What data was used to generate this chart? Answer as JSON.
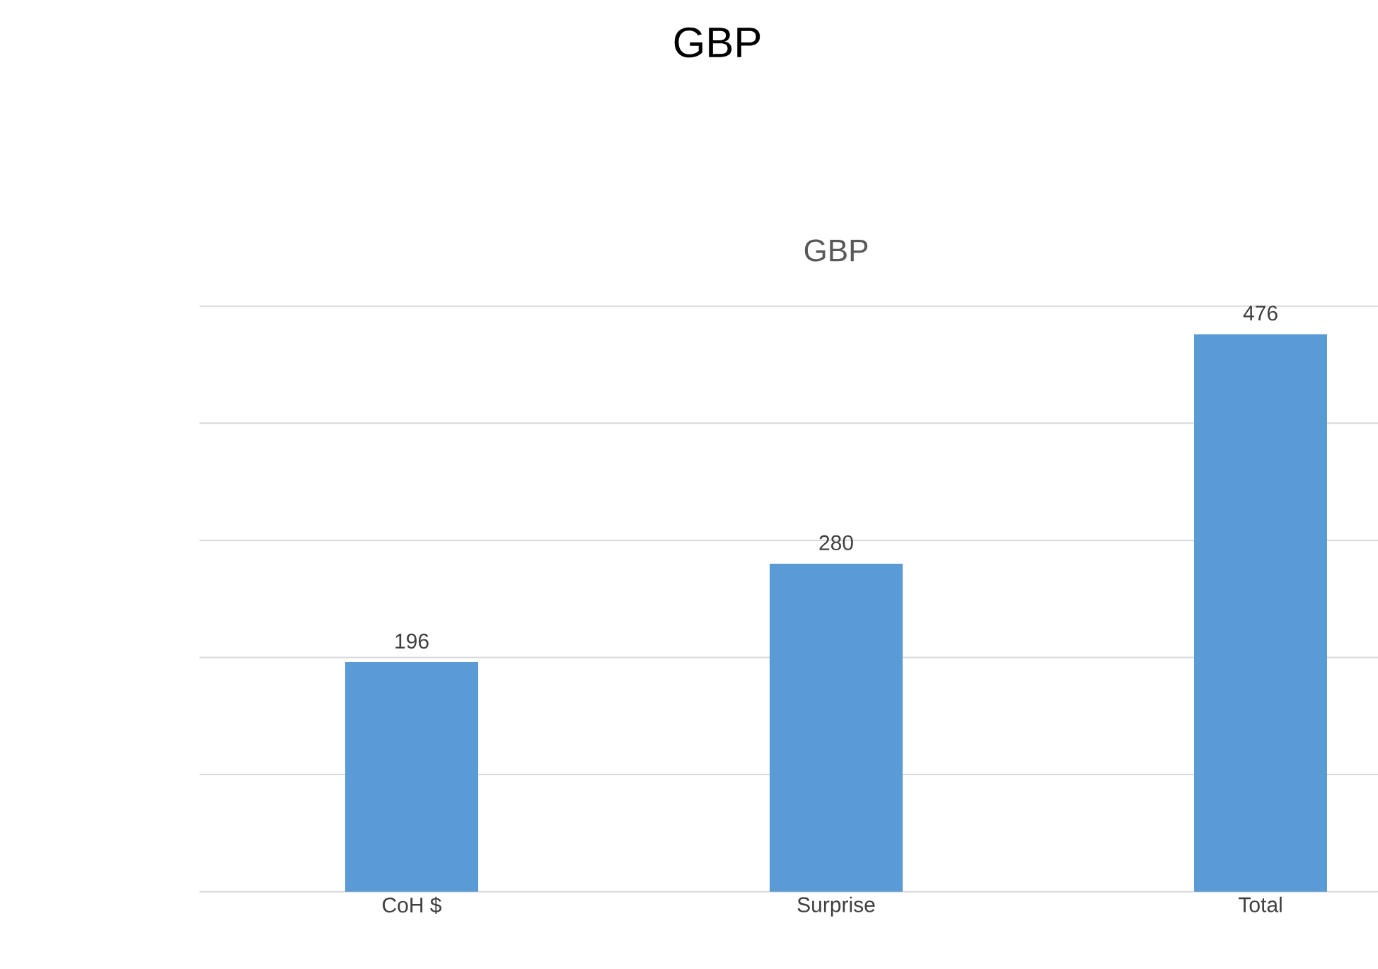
{
  "chart_data": {
    "type": "bar",
    "title": "GBP",
    "subtitle": "GBP",
    "categories": [
      "CoH $",
      "Surprise",
      "Total"
    ],
    "values": [
      196,
      280,
      476
    ],
    "color": "#5b9bd5",
    "ylim": [
      0,
      500
    ],
    "yticks": [
      {
        "value": 0,
        "label": null
      },
      {
        "value": 100,
        "label": null
      },
      {
        "value": 200,
        "label": null
      },
      {
        "value": 300,
        "label": null
      },
      {
        "value": 400,
        "label": null
      },
      {
        "value": 500,
        "label": null
      }
    ],
    "grid": "y",
    "tick_labels": "x",
    "data_labels": true
  }
}
